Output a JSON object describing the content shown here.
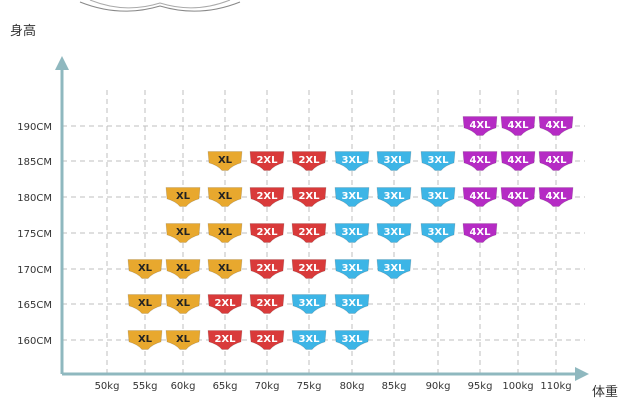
{
  "chart_data": {
    "type": "table",
    "xlabel": "体重",
    "ylabel": "身高",
    "x_ticks": [
      "50kg",
      "55kg",
      "60kg",
      "65kg",
      "70kg",
      "75kg",
      "80kg",
      "85kg",
      "90kg",
      "95kg",
      "100kg",
      "110kg"
    ],
    "y_ticks": [
      "190CM",
      "185CM",
      "180CM",
      "175CM",
      "170CM",
      "165CM",
      "160CM"
    ],
    "grid": true,
    "colors": {
      "XL": "#e8a82e",
      "2XL": "#d93a3a",
      "3XL": "#3db5e6",
      "4XL": "#b52bc4"
    },
    "cells": [
      {
        "x": "95kg",
        "y": "190CM",
        "size": "4XL"
      },
      {
        "x": "100kg",
        "y": "190CM",
        "size": "4XL"
      },
      {
        "x": "110kg",
        "y": "190CM",
        "size": "4XL"
      },
      {
        "x": "65kg",
        "y": "185CM",
        "size": "XL"
      },
      {
        "x": "70kg",
        "y": "185CM",
        "size": "2XL"
      },
      {
        "x": "75kg",
        "y": "185CM",
        "size": "2XL"
      },
      {
        "x": "80kg",
        "y": "185CM",
        "size": "3XL"
      },
      {
        "x": "85kg",
        "y": "185CM",
        "size": "3XL"
      },
      {
        "x": "90kg",
        "y": "185CM",
        "size": "3XL"
      },
      {
        "x": "95kg",
        "y": "185CM",
        "size": "4XL"
      },
      {
        "x": "100kg",
        "y": "185CM",
        "size": "4XL"
      },
      {
        "x": "110kg",
        "y": "185CM",
        "size": "4XL"
      },
      {
        "x": "60kg",
        "y": "180CM",
        "size": "XL"
      },
      {
        "x": "65kg",
        "y": "180CM",
        "size": "XL"
      },
      {
        "x": "70kg",
        "y": "180CM",
        "size": "2XL"
      },
      {
        "x": "75kg",
        "y": "180CM",
        "size": "2XL"
      },
      {
        "x": "80kg",
        "y": "180CM",
        "size": "3XL"
      },
      {
        "x": "85kg",
        "y": "180CM",
        "size": "3XL"
      },
      {
        "x": "90kg",
        "y": "180CM",
        "size": "3XL"
      },
      {
        "x": "95kg",
        "y": "180CM",
        "size": "4XL"
      },
      {
        "x": "100kg",
        "y": "180CM",
        "size": "4XL"
      },
      {
        "x": "110kg",
        "y": "180CM",
        "size": "4XL"
      },
      {
        "x": "60kg",
        "y": "175CM",
        "size": "XL"
      },
      {
        "x": "65kg",
        "y": "175CM",
        "size": "XL"
      },
      {
        "x": "70kg",
        "y": "175CM",
        "size": "2XL"
      },
      {
        "x": "75kg",
        "y": "175CM",
        "size": "2XL"
      },
      {
        "x": "80kg",
        "y": "175CM",
        "size": "3XL"
      },
      {
        "x": "85kg",
        "y": "175CM",
        "size": "3XL"
      },
      {
        "x": "90kg",
        "y": "175CM",
        "size": "3XL"
      },
      {
        "x": "95kg",
        "y": "175CM",
        "size": "4XL"
      },
      {
        "x": "55kg",
        "y": "170CM",
        "size": "XL"
      },
      {
        "x": "60kg",
        "y": "170CM",
        "size": "XL"
      },
      {
        "x": "65kg",
        "y": "170CM",
        "size": "XL"
      },
      {
        "x": "70kg",
        "y": "170CM",
        "size": "2XL"
      },
      {
        "x": "75kg",
        "y": "170CM",
        "size": "2XL"
      },
      {
        "x": "80kg",
        "y": "170CM",
        "size": "3XL"
      },
      {
        "x": "85kg",
        "y": "170CM",
        "size": "3XL"
      },
      {
        "x": "55kg",
        "y": "165CM",
        "size": "XL"
      },
      {
        "x": "60kg",
        "y": "165CM",
        "size": "XL"
      },
      {
        "x": "65kg",
        "y": "165CM",
        "size": "2XL"
      },
      {
        "x": "70kg",
        "y": "165CM",
        "size": "2XL"
      },
      {
        "x": "75kg",
        "y": "165CM",
        "size": "3XL"
      },
      {
        "x": "80kg",
        "y": "165CM",
        "size": "3XL"
      },
      {
        "x": "55kg",
        "y": "160CM",
        "size": "XL"
      },
      {
        "x": "60kg",
        "y": "160CM",
        "size": "XL"
      },
      {
        "x": "65kg",
        "y": "160CM",
        "size": "2XL"
      },
      {
        "x": "70kg",
        "y": "160CM",
        "size": "2XL"
      },
      {
        "x": "75kg",
        "y": "160CM",
        "size": "3XL"
      },
      {
        "x": "80kg",
        "y": "160CM",
        "size": "3XL"
      }
    ]
  }
}
